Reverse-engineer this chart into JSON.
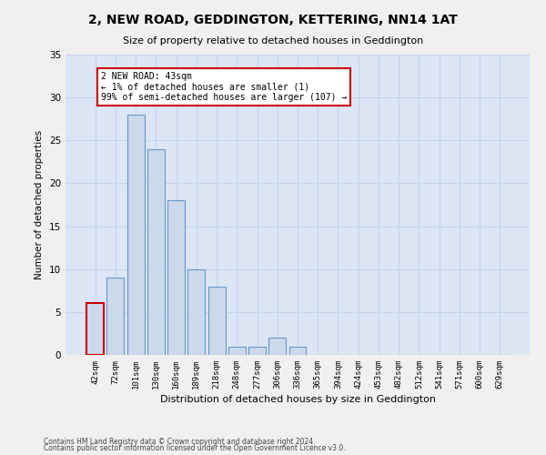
{
  "title": "2, NEW ROAD, GEDDINGTON, KETTERING, NN14 1AT",
  "subtitle": "Size of property relative to detached houses in Geddington",
  "xlabel": "Distribution of detached houses by size in Geddington",
  "ylabel": "Number of detached properties",
  "bar_values": [
    6,
    9,
    28,
    24,
    18,
    10,
    8,
    1,
    1,
    2,
    1,
    0,
    0,
    0,
    0,
    0,
    0,
    0,
    0,
    0,
    0
  ],
  "bar_labels": [
    "42sqm",
    "72sqm",
    "101sqm",
    "130sqm",
    "160sqm",
    "189sqm",
    "218sqm",
    "248sqm",
    "277sqm",
    "306sqm",
    "336sqm",
    "365sqm",
    "394sqm",
    "424sqm",
    "453sqm",
    "482sqm",
    "512sqm",
    "541sqm",
    "571sqm",
    "600sqm",
    "629sqm"
  ],
  "bar_color": "#ccd9ea",
  "bar_edge_color": "#6699cc",
  "highlight_bar_index": 0,
  "highlight_bar_edge_color": "#cc0000",
  "annotation_text": "2 NEW ROAD: 43sqm\n← 1% of detached houses are smaller (1)\n99% of semi-detached houses are larger (107) →",
  "annotation_box_color": "#ffffff",
  "annotation_box_edge": "#cc0000",
  "ylim": [
    0,
    35
  ],
  "yticks": [
    0,
    5,
    10,
    15,
    20,
    25,
    30,
    35
  ],
  "grid_color": "#c8d4e8",
  "background_color": "#dce6f5",
  "fig_background": "#f0f0f0",
  "footer_line1": "Contains HM Land Registry data © Crown copyright and database right 2024.",
  "footer_line2": "Contains public sector information licensed under the Open Government Licence v3.0."
}
